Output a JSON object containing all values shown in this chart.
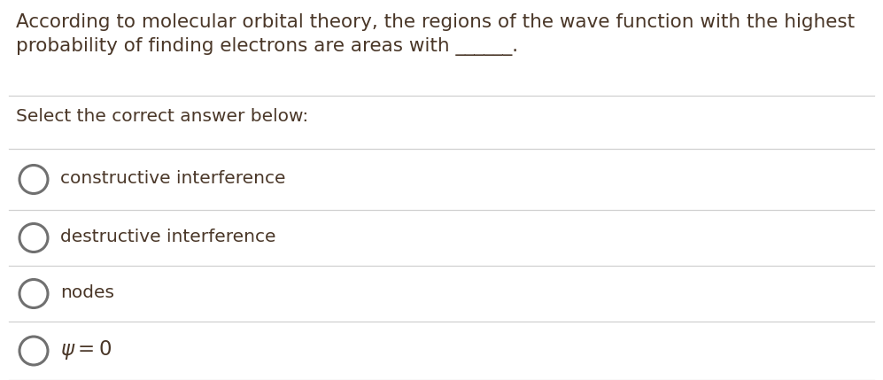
{
  "background_color": "#ffffff",
  "text_color": "#4a3728",
  "line_color": "#d0d0d0",
  "circle_color": "#707070",
  "question_line1": "According to molecular orbital theory, the regions of the wave function with the highest",
  "question_line2": "probability of finding electrons are areas with ______.",
  "select_label": "Select the correct answer below:",
  "answers": [
    "constructive interference",
    "destructive interference",
    "nodes",
    "psi_zero"
  ],
  "font_size_question": 15.5,
  "font_size_select": 14.5,
  "font_size_answer": 14.5,
  "figsize": [
    9.97,
    4.29
  ],
  "dpi": 100
}
